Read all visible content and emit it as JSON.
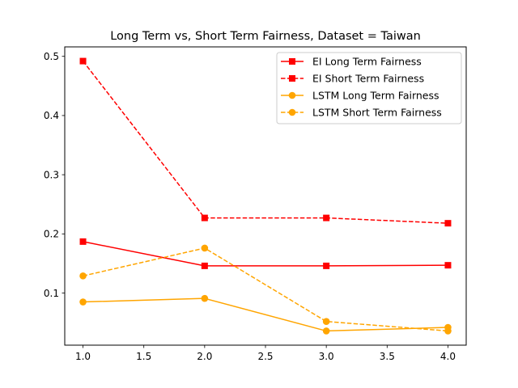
{
  "chart_data": {
    "type": "line",
    "title": "Long Term vs, Short Term Fairness, Dataset = Taiwan",
    "xlabel": "",
    "ylabel": "",
    "x": [
      1.0,
      2.0,
      3.0,
      4.0
    ],
    "xlim": [
      0.85,
      4.15
    ],
    "ylim": [
      0.012,
      0.516
    ],
    "xticks": [
      1.0,
      1.5,
      2.0,
      2.5,
      3.0,
      3.5,
      4.0
    ],
    "xtick_labels": [
      "1.0",
      "1.5",
      "2.0",
      "2.5",
      "3.0",
      "3.5",
      "4.0"
    ],
    "yticks": [
      0.1,
      0.2,
      0.3,
      0.4,
      0.5
    ],
    "ytick_labels": [
      "0.1",
      "0.2",
      "0.3",
      "0.4",
      "0.5"
    ],
    "grid": false,
    "legend_position": "top-right",
    "series": [
      {
        "name": "EI Long Term Fairness",
        "values": [
          0.187,
          0.146,
          0.146,
          0.147
        ],
        "color": "#ff0000",
        "linestyle": "solid",
        "marker": "square"
      },
      {
        "name": "EI Short Term Fairness",
        "values": [
          0.492,
          0.227,
          0.227,
          0.218
        ],
        "color": "#ff0000",
        "linestyle": "dashed",
        "marker": "square"
      },
      {
        "name": "LSTM Long Term Fairness",
        "values": [
          0.085,
          0.091,
          0.036,
          0.042
        ],
        "color": "#ffa500",
        "linestyle": "solid",
        "marker": "circle"
      },
      {
        "name": "LSTM Short Term Fairness",
        "values": [
          0.129,
          0.176,
          0.052,
          0.036
        ],
        "color": "#ffa500",
        "linestyle": "dashed",
        "marker": "circle"
      }
    ]
  }
}
